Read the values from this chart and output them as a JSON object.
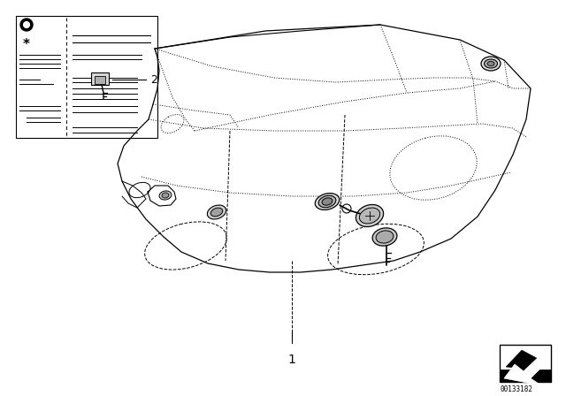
{
  "bg_color": "#ffffff",
  "line_color": "#000000",
  "fig_width": 6.4,
  "fig_height": 4.48,
  "dpi": 100,
  "diagram_id": "00133182",
  "label1": "1",
  "label2": "2"
}
